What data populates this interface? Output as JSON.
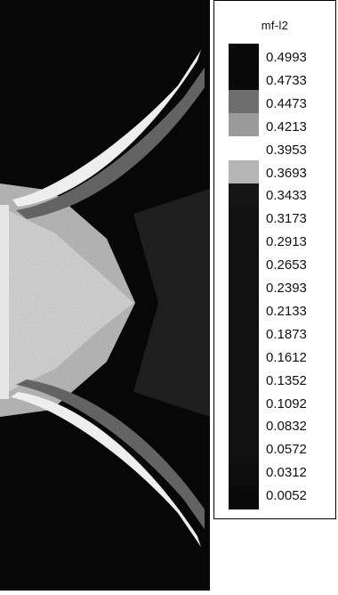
{
  "legend": {
    "title": "mf-l2",
    "levels": [
      "0.4993",
      "0.4733",
      "0.4473",
      "0.4213",
      "0.3953",
      "0.3693",
      "0.3433",
      "0.3173",
      "0.2913",
      "0.2653",
      "0.2393",
      "0.2133",
      "0.1873",
      "0.1612",
      "0.1352",
      "0.1092",
      "0.0832",
      "0.0572",
      "0.0312",
      "0.0052"
    ],
    "swatch_colors": [
      "#0a0a0a",
      "#0a0a0a",
      "#6e6e6e",
      "#9a9a9a",
      "#ffffff",
      "#b5b5b5",
      "#151515",
      "#111111",
      "#111111",
      "#111111",
      "#111111",
      "#111111",
      "#111111",
      "#111111",
      "#111111",
      "#111111",
      "#111111",
      "#111111",
      "#0e0e0e",
      "#0a0a0a"
    ]
  },
  "plot": {
    "background_color": "#070707",
    "band_color": "#d8d8d8",
    "region_color": "#bdbdbd"
  }
}
